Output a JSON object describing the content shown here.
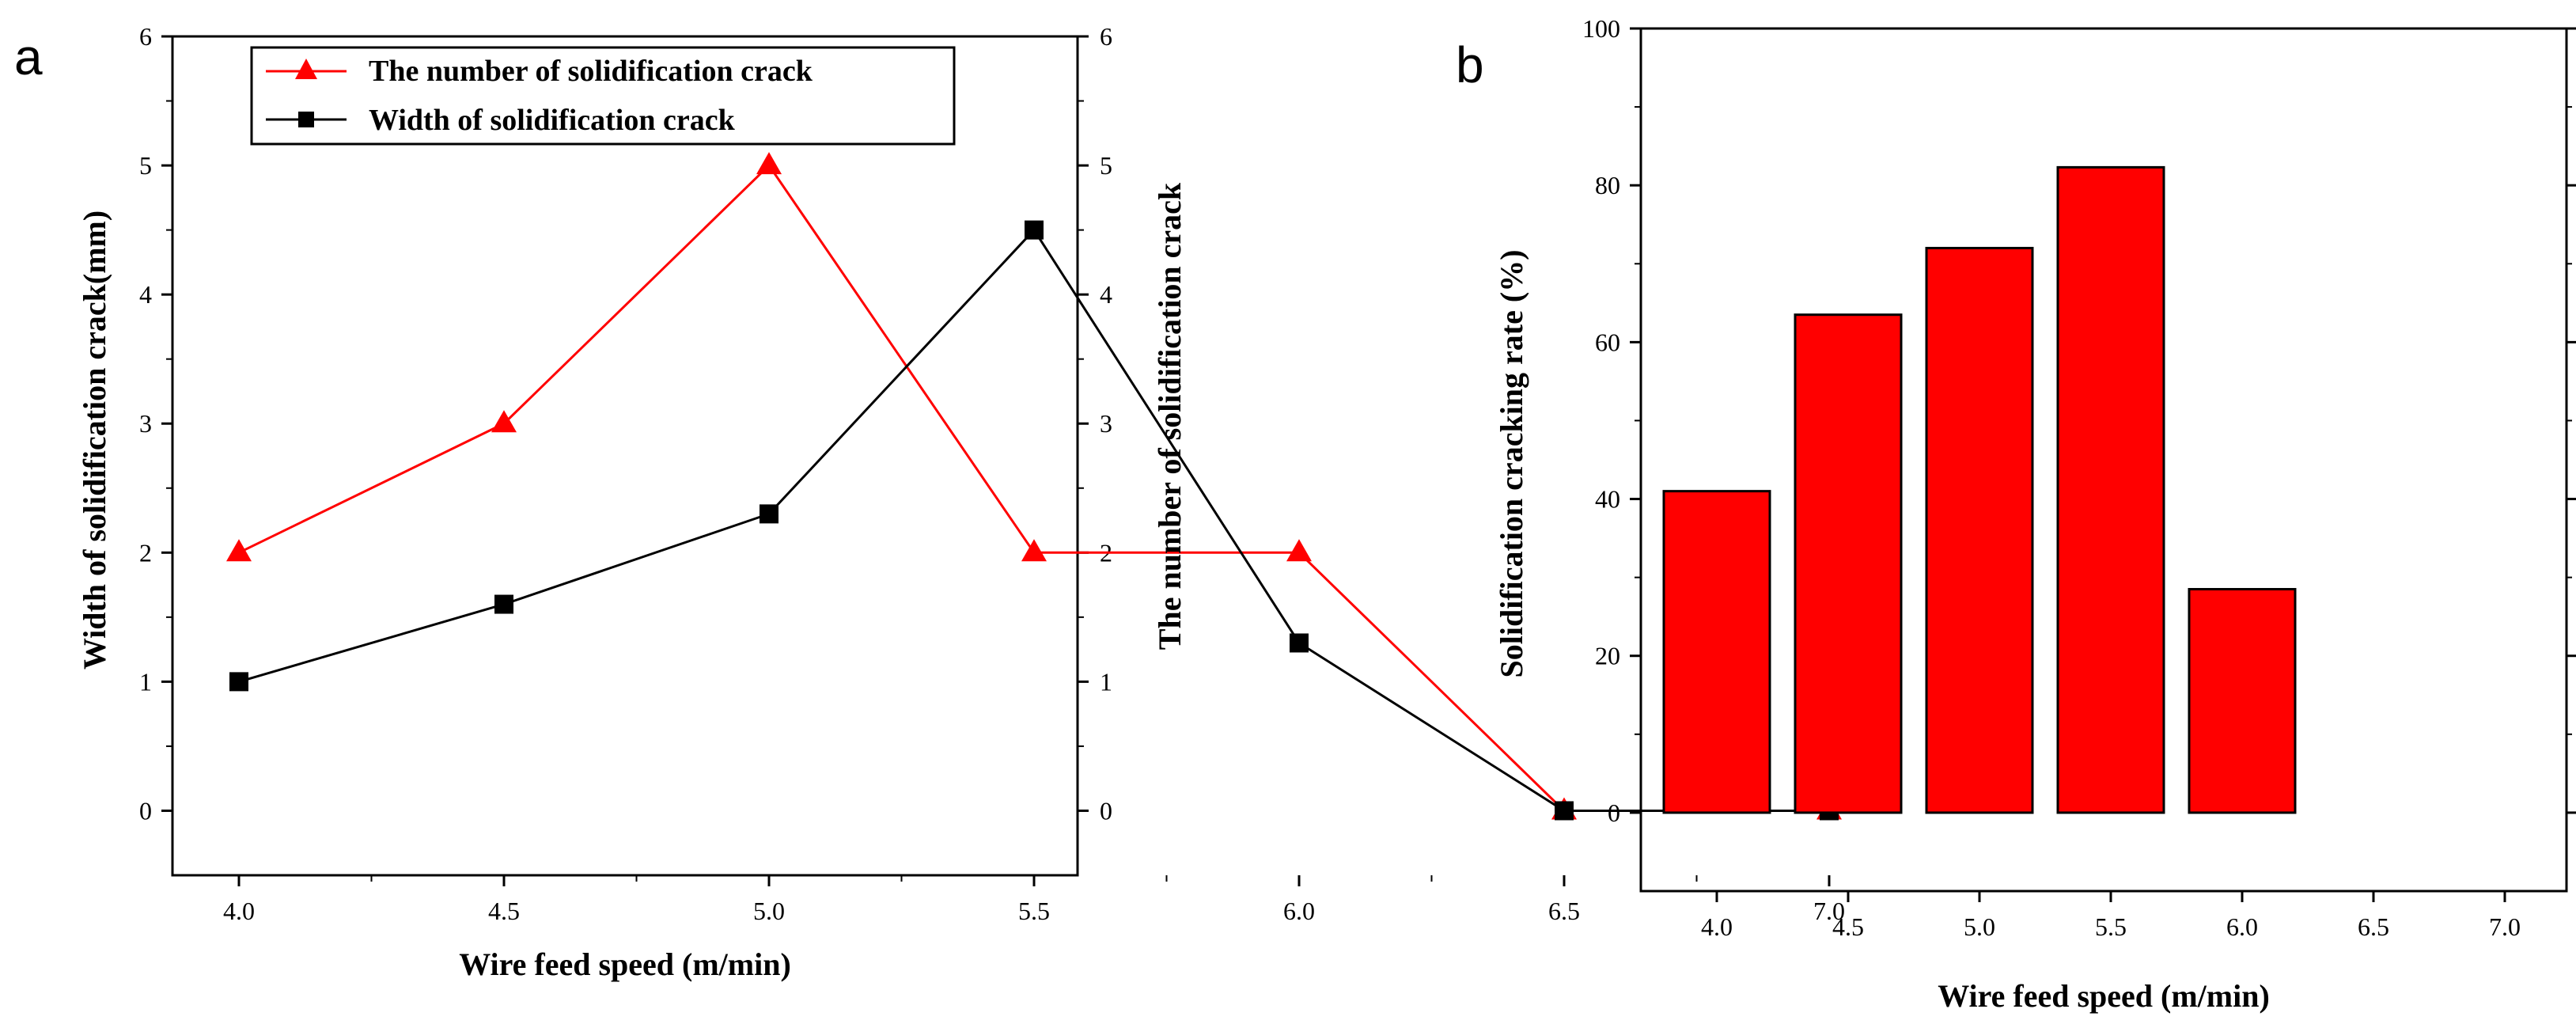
{
  "chart_data": [
    {
      "panel": "a",
      "type": "line",
      "x": [
        4.0,
        4.5,
        5.0,
        5.5,
        6.0,
        6.5,
        7.0
      ],
      "xticklabels": [
        "4.0",
        "4.5",
        "5.0",
        "5.5",
        "6.0",
        "6.5",
        "7.0"
      ],
      "xlabel": "Wire feed speed (m/min)",
      "ylabel": "Width of solidification crack(mm)",
      "ylabel_right": "The number of solidification crack",
      "ylim": [
        -0.5,
        6
      ],
      "yticks": [
        0,
        1,
        2,
        3,
        4,
        5,
        6
      ],
      "yticklabels": [
        "0",
        "1",
        "2",
        "3",
        "4",
        "5",
        "6"
      ],
      "legend_position": "top-left",
      "series": [
        {
          "name": "The number of solidification crack",
          "axis": "right",
          "marker": "triangle",
          "color": "#ff0000",
          "values": [
            2,
            3,
            5,
            2,
            2,
            0,
            0
          ]
        },
        {
          "name": "Width of solidification crack",
          "axis": "left",
          "marker": "square",
          "color": "#000000",
          "values": [
            1.0,
            1.6,
            2.3,
            4.5,
            1.3,
            0,
            0
          ]
        }
      ]
    },
    {
      "panel": "b",
      "type": "bar",
      "categories": [
        "4.0",
        "4.5",
        "5.0",
        "5.5",
        "6.0",
        "6.5",
        "7.0"
      ],
      "values": [
        41,
        63.5,
        72,
        82.3,
        28.5,
        0,
        0
      ],
      "xlabel": "Wire feed speed (m/min)",
      "ylabel": "Solidification cracking rate (%)",
      "ylim": [
        -10,
        100
      ],
      "yticks": [
        0,
        20,
        40,
        60,
        80,
        100
      ],
      "yticklabels": [
        "0",
        "20",
        "40",
        "60",
        "80",
        "100"
      ],
      "bar_color": "#ff0000"
    }
  ]
}
